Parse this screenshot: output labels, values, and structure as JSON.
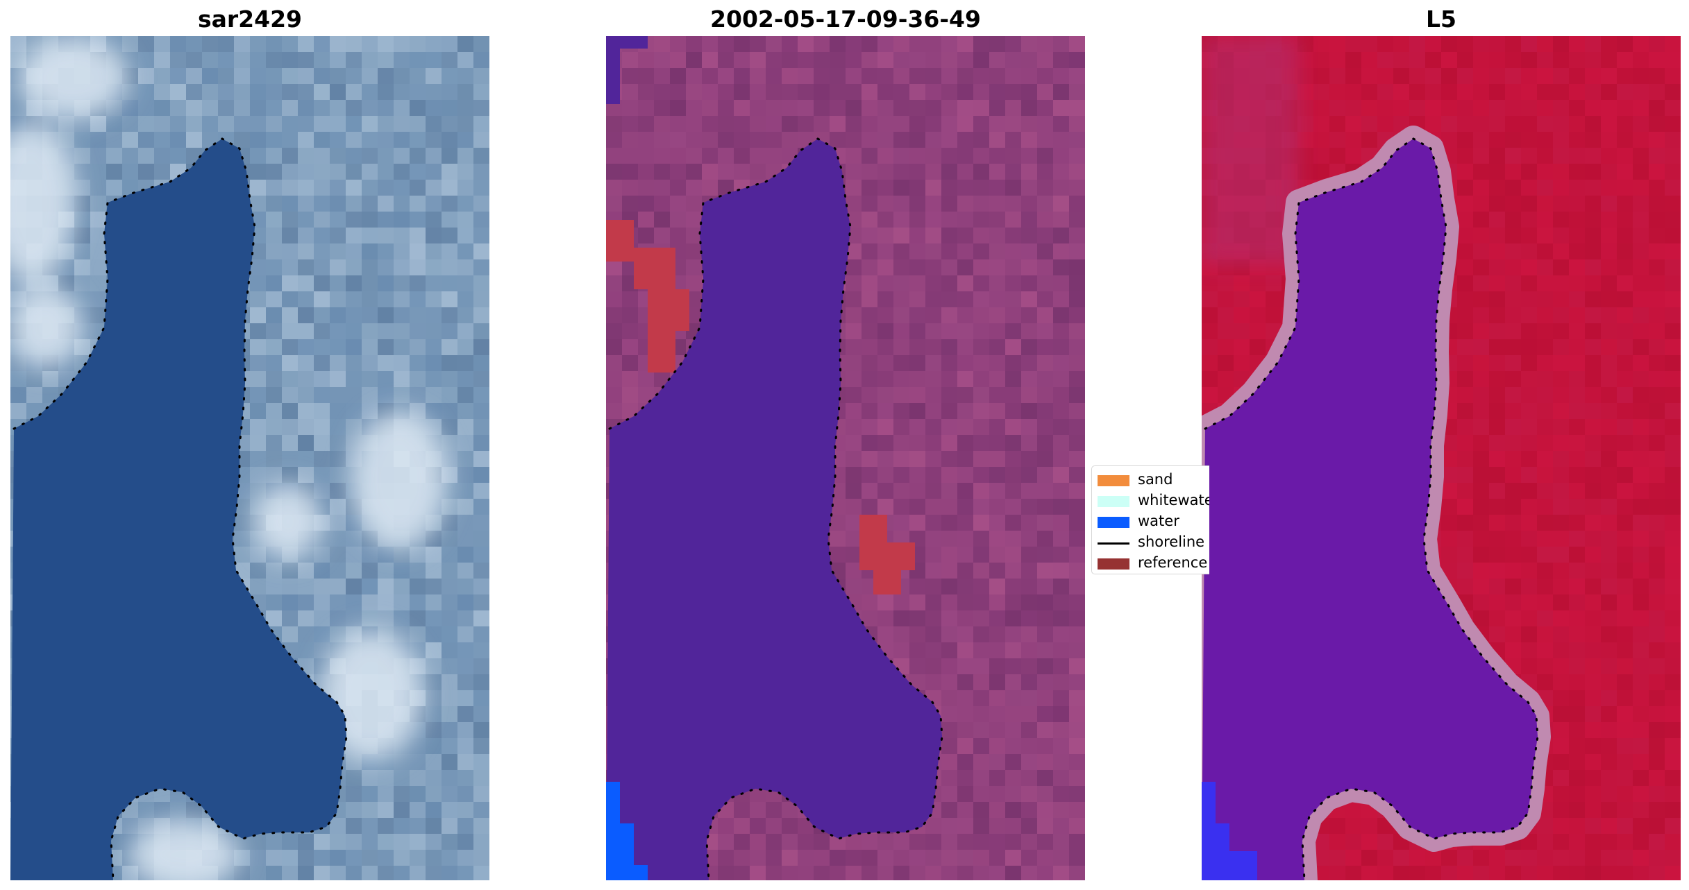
{
  "panels": [
    {
      "title": "sar2429",
      "kind": "rgb"
    },
    {
      "title": "2002-05-17-09-36-49",
      "kind": "classified"
    },
    {
      "title": "L5",
      "kind": "mndwi"
    }
  ],
  "legend": {
    "entries": [
      {
        "label": "sand",
        "type": "patch",
        "color": "#f28c3c"
      },
      {
        "label": "whitewater",
        "type": "patch",
        "color": "#ccfff6"
      },
      {
        "label": "water",
        "type": "patch",
        "color": "#0a5cff"
      },
      {
        "label": "shoreline",
        "type": "line",
        "color": "#000000"
      },
      {
        "label": "reference",
        "type": "patch",
        "color": "#963232"
      }
    ]
  },
  "colors": {
    "rgb_water": "#244d8a",
    "rgb_land": "#7e9dbb",
    "rgb_bright": "#dce8f2",
    "classified_land": "#8e3f7b",
    "classified_water": "#51259a",
    "classified_reference": "#c23a4a",
    "classified_bluewater": "#0a5cff",
    "mndwi_land": "#c3123a",
    "mndwi_water": "#6a1aa8",
    "mndwi_edge": "#c08ab0",
    "shoreline": "#000000"
  }
}
